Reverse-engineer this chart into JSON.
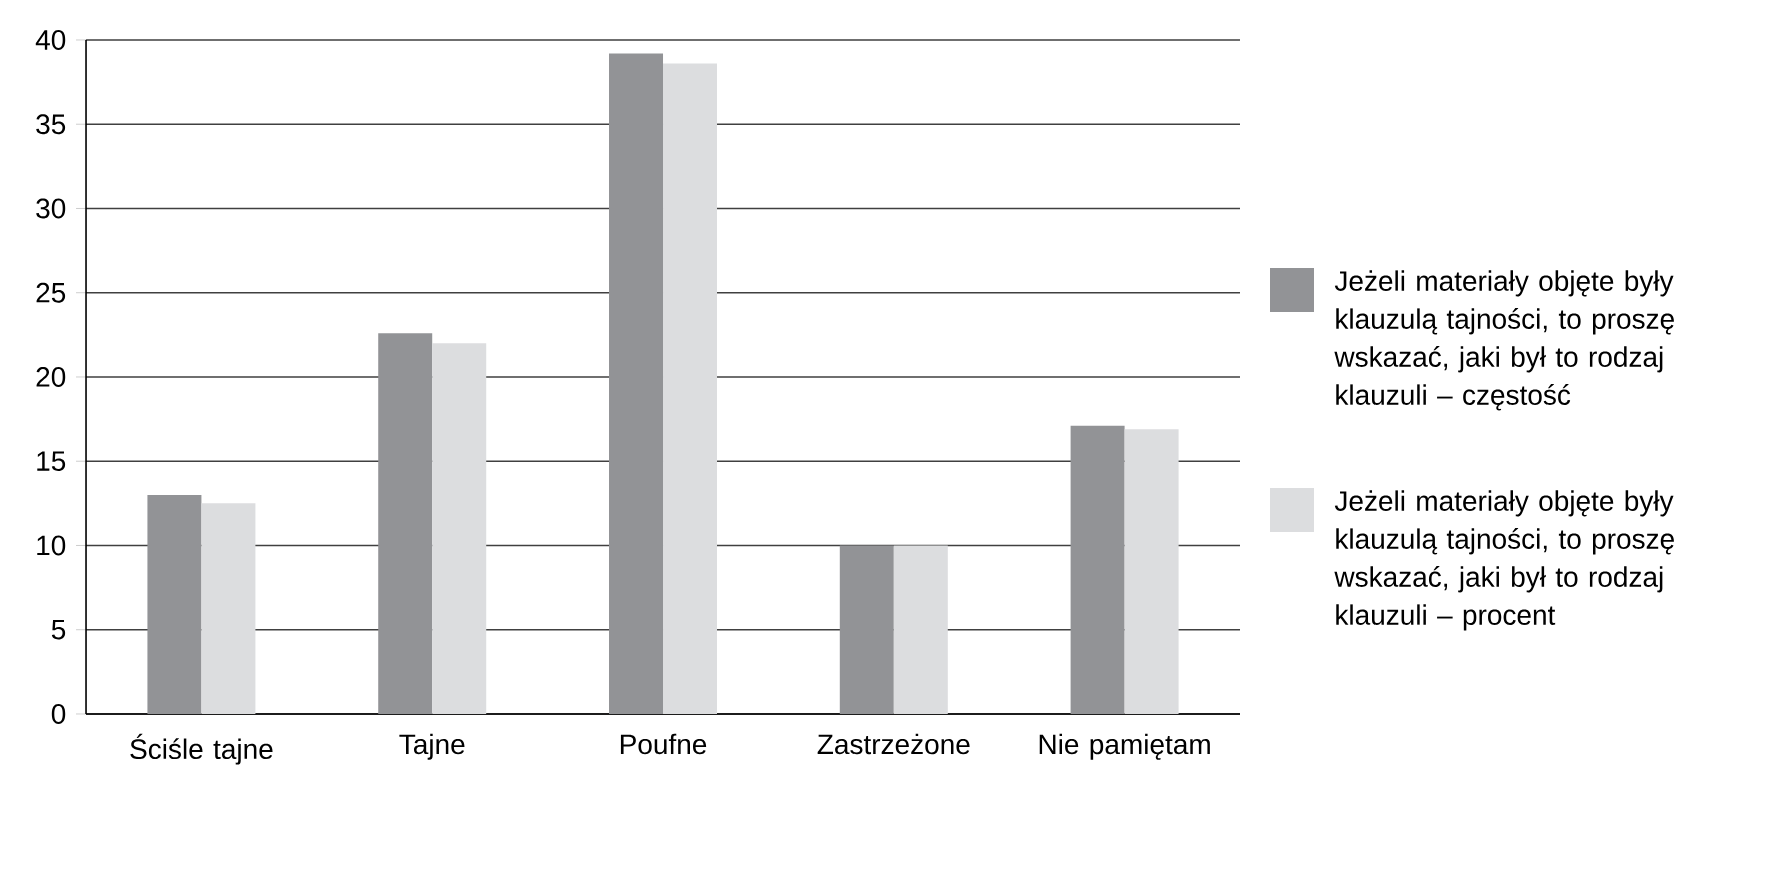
{
  "chart_data": {
    "type": "bar",
    "categories": [
      "Ściśle tajne",
      "Tajne",
      "Poufne",
      "Zastrzeżone",
      "Nie pamiętam"
    ],
    "series": [
      {
        "name": "Jeżeli materiały objęte były klauzulą tajności, to proszę wskazać, jaki był to rodzaj klauzuli – częstość",
        "color": "#929396",
        "values": [
          13.0,
          22.6,
          39.2,
          10.0,
          17.1
        ]
      },
      {
        "name": "Jeżeli materiały objęte były klauzulą tajności, to proszę wskazać, jaki był to rodzaj klauzuli – procent",
        "color": "#dcdddf",
        "values": [
          12.5,
          22.0,
          38.6,
          10.0,
          16.9
        ]
      }
    ],
    "ylim": [
      0,
      40
    ],
    "yticks": [
      0,
      5,
      10,
      15,
      20,
      25,
      30,
      35,
      40
    ],
    "grid": "y",
    "legend": "right"
  }
}
